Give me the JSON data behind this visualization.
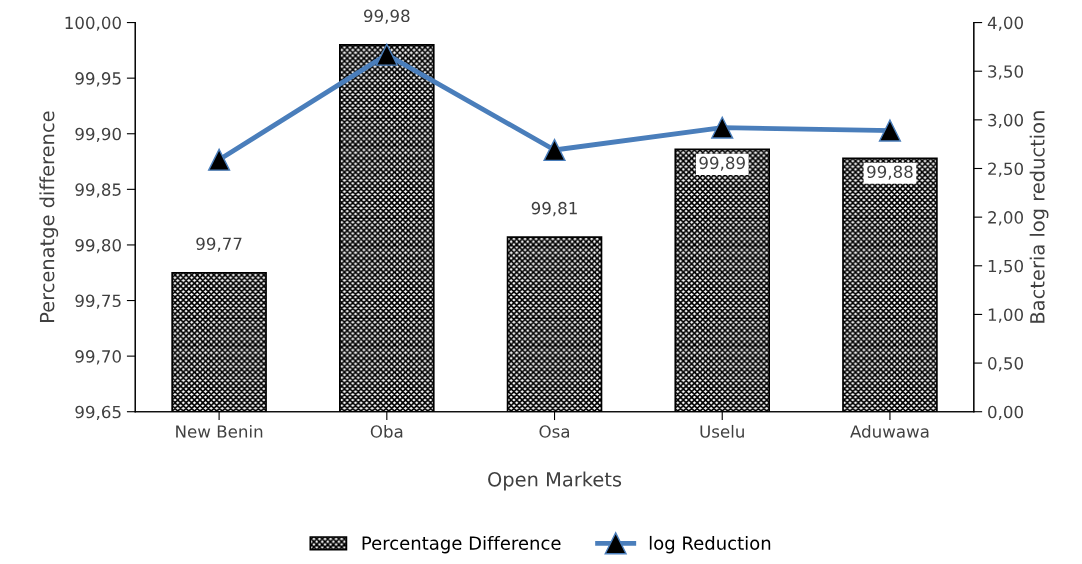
{
  "chart_data": {
    "type": "bar",
    "xlabel": "Open Markets",
    "ylabel": "Percenatge difference",
    "y2label": "Bacteria log reduction",
    "categories": [
      "New Benin",
      "Oba",
      "Osa",
      "Uselu",
      "Aduwawa"
    ],
    "series": [
      {
        "name": "Percentage Difference",
        "color": "#000000",
        "values": [
          99.775,
          99.98,
          99.807,
          99.886,
          99.878
        ],
        "value_labels": [
          "99,77",
          "99,98",
          "99,81",
          "99,89",
          "99,88"
        ]
      },
      {
        "name": "log Reduction",
        "type": "line",
        "axis": "y2",
        "color": "#4a7ebb",
        "marker": "triangle",
        "values": [
          2.59,
          3.67,
          2.69,
          2.92,
          2.89
        ]
      }
    ],
    "ylim": [
      99.65,
      100.0
    ],
    "yticks": [
      {
        "value": 99.65,
        "label": "99,65"
      },
      {
        "value": 99.7,
        "label": "99,70"
      },
      {
        "value": 99.75,
        "label": "99,75"
      },
      {
        "value": 99.8,
        "label": "99,80"
      },
      {
        "value": 99.85,
        "label": "99,85"
      },
      {
        "value": 99.9,
        "label": "99,90"
      },
      {
        "value": 99.95,
        "label": "99,95"
      },
      {
        "value": 100.0,
        "label": "100,00"
      }
    ],
    "y2lim": [
      0,
      4
    ],
    "y2ticks": [
      {
        "value": 0,
        "label": "0,00"
      },
      {
        "value": 0.5,
        "label": "0,50"
      },
      {
        "value": 1,
        "label": "1,00"
      },
      {
        "value": 1.5,
        "label": "1,50"
      },
      {
        "value": 2,
        "label": "2,00"
      },
      {
        "value": 2.5,
        "label": "2,50"
      },
      {
        "value": 3,
        "label": "3,00"
      },
      {
        "value": 3.5,
        "label": "3,50"
      },
      {
        "value": 4,
        "label": "4,00"
      }
    ],
    "legend": "bottom",
    "grid": false
  }
}
